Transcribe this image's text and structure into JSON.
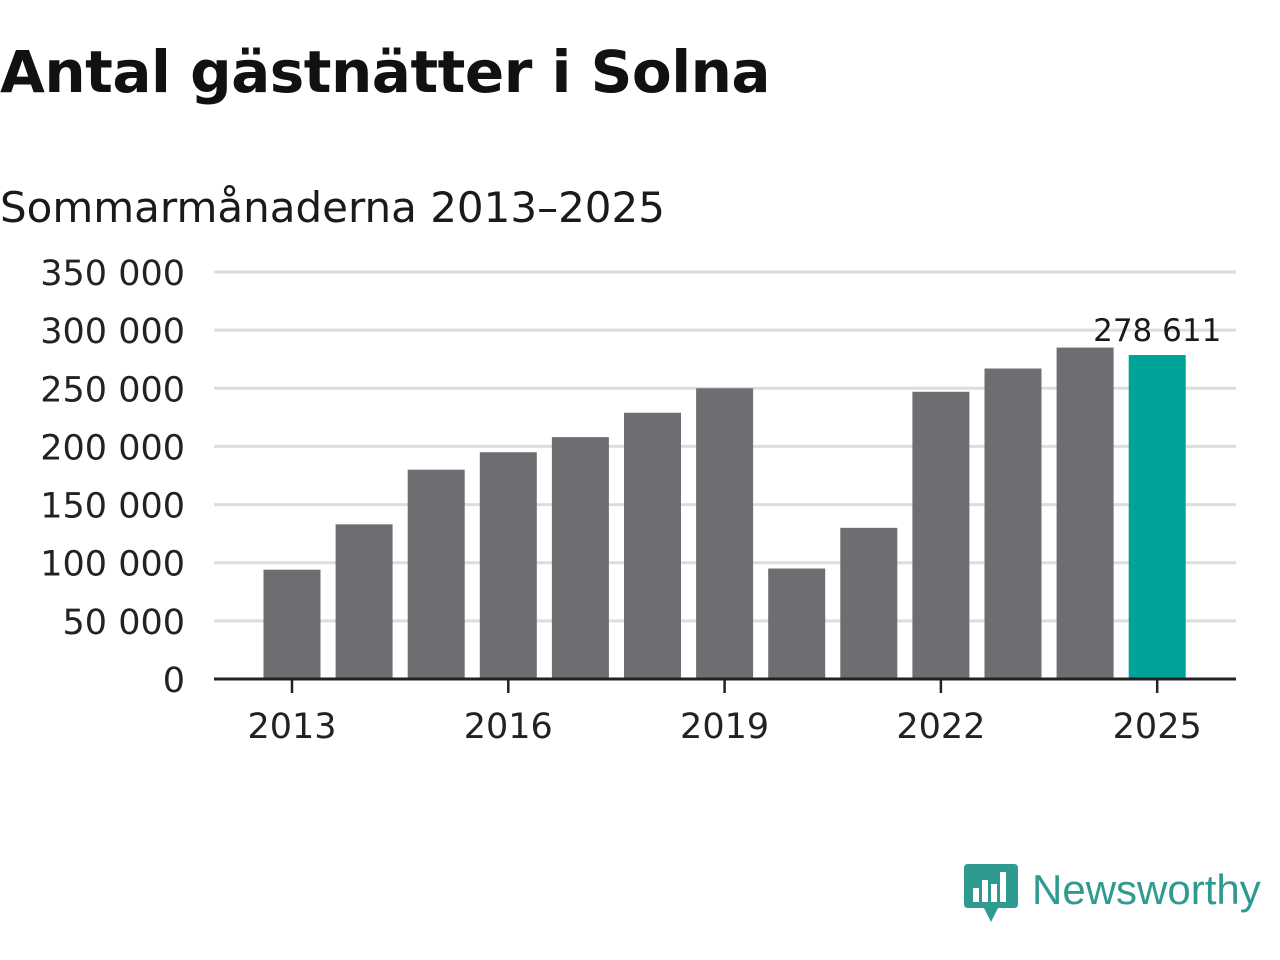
{
  "header": {
    "title": "Antal gästnätter i Solna",
    "subtitle": "Sommarmånaderna 2013–2025"
  },
  "brand": {
    "name": "Newsworthy",
    "icon": "newsworthy-bar-chart-logo-icon",
    "color": "#2f9a8f"
  },
  "colors": {
    "bar": "#6e6d72",
    "highlight": "#00a39a",
    "grid": "#dddddd",
    "axis": "#222222"
  },
  "chart_data": {
    "type": "bar",
    "title": "Antal gästnätter i Solna",
    "subtitle": "Sommarmånaderna 2013–2025",
    "categories": [
      "2013",
      "2014",
      "2015",
      "2016",
      "2017",
      "2018",
      "2019",
      "2020",
      "2021",
      "2022",
      "2023",
      "2024",
      "2025"
    ],
    "values": [
      94000,
      133000,
      180000,
      195000,
      208000,
      229000,
      250000,
      95000,
      130000,
      247000,
      267000,
      285000,
      278611
    ],
    "x_tick_labels": [
      "2013",
      "2016",
      "2019",
      "2022",
      "2025"
    ],
    "y_tick_labels": [
      "0",
      "50 000",
      "100 000",
      "150 000",
      "200 000",
      "250 000",
      "300 000",
      "350 000"
    ],
    "ylim": [
      0,
      350000
    ],
    "grid": true,
    "highlight_index": 12,
    "annotation": {
      "category": "2025",
      "label": "278 611"
    },
    "xlabel": "",
    "ylabel": ""
  }
}
